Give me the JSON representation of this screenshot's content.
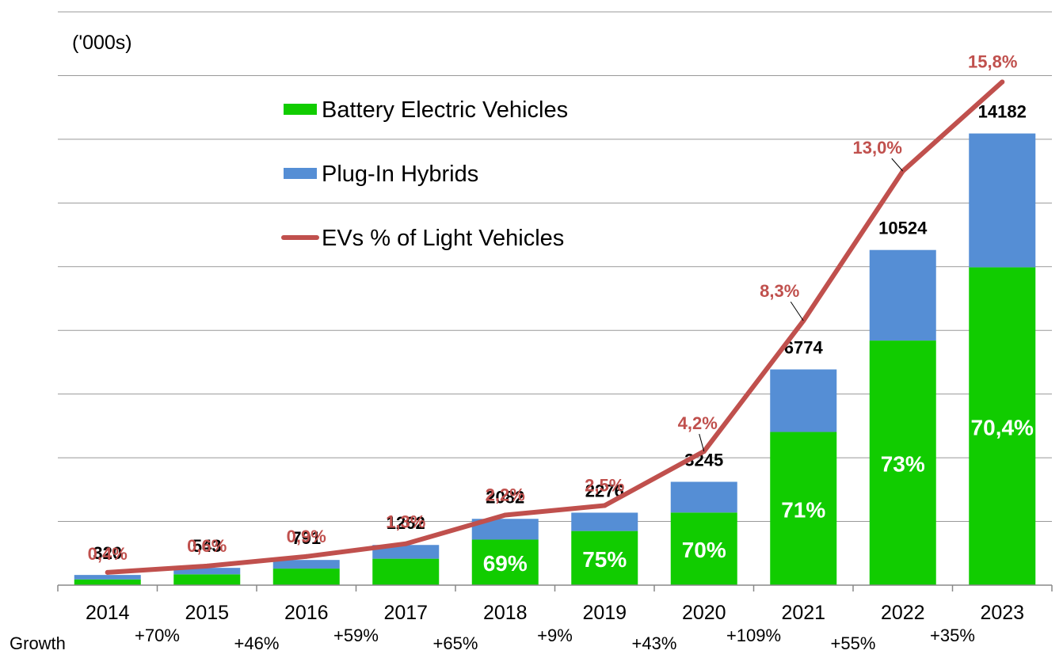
{
  "chart_data": {
    "type": "bar",
    "stacked": true,
    "unit_label": "('000s)",
    "categories": [
      "2014",
      "2015",
      "2016",
      "2017",
      "2018",
      "2019",
      "2020",
      "2021",
      "2022",
      "2023"
    ],
    "totals": [
      320,
      543,
      791,
      1262,
      2082,
      2276,
      3245,
      6774,
      10524,
      14182
    ],
    "series": [
      {
        "name": "Battery Electric Vehicles",
        "color": "#11cc00",
        "values": [
          180,
          340,
          520,
          830,
          1430,
          1700,
          2280,
          4810,
          7680,
          9980
        ],
        "labels": [
          "",
          "",
          "",
          "",
          "69%",
          "75%",
          "70%",
          "71%",
          "73%",
          "70,4%"
        ]
      },
      {
        "name": "Plug-In Hybrids",
        "color": "#558ed5",
        "values": [
          140,
          203,
          271,
          432,
          652,
          576,
          965,
          1964,
          2844,
          4202
        ]
      }
    ],
    "line_series": {
      "name": "EVs % of Light Vehicles",
      "color": "#c0504d",
      "values": [
        0.4,
        0.6,
        0.9,
        1.3,
        2.2,
        2.5,
        4.2,
        8.3,
        13.0,
        15.8
      ],
      "labels": [
        "0,4%",
        "0,6%",
        "0,9%",
        "1,3%",
        "2,2%",
        "2,5%",
        "4,2%",
        "8,3%",
        "13,0%",
        "15,8%"
      ]
    },
    "growth_label": "Growth",
    "growth": [
      "+70%",
      "+46%",
      "+59%",
      "+65%",
      "+9%",
      "+43%",
      "+109%",
      "+55%",
      "+35%"
    ],
    "ylim": [
      0,
      18000
    ],
    "grid": true,
    "legend_position": "top-center",
    "title": "",
    "xlabel": "",
    "ylabel": ""
  }
}
